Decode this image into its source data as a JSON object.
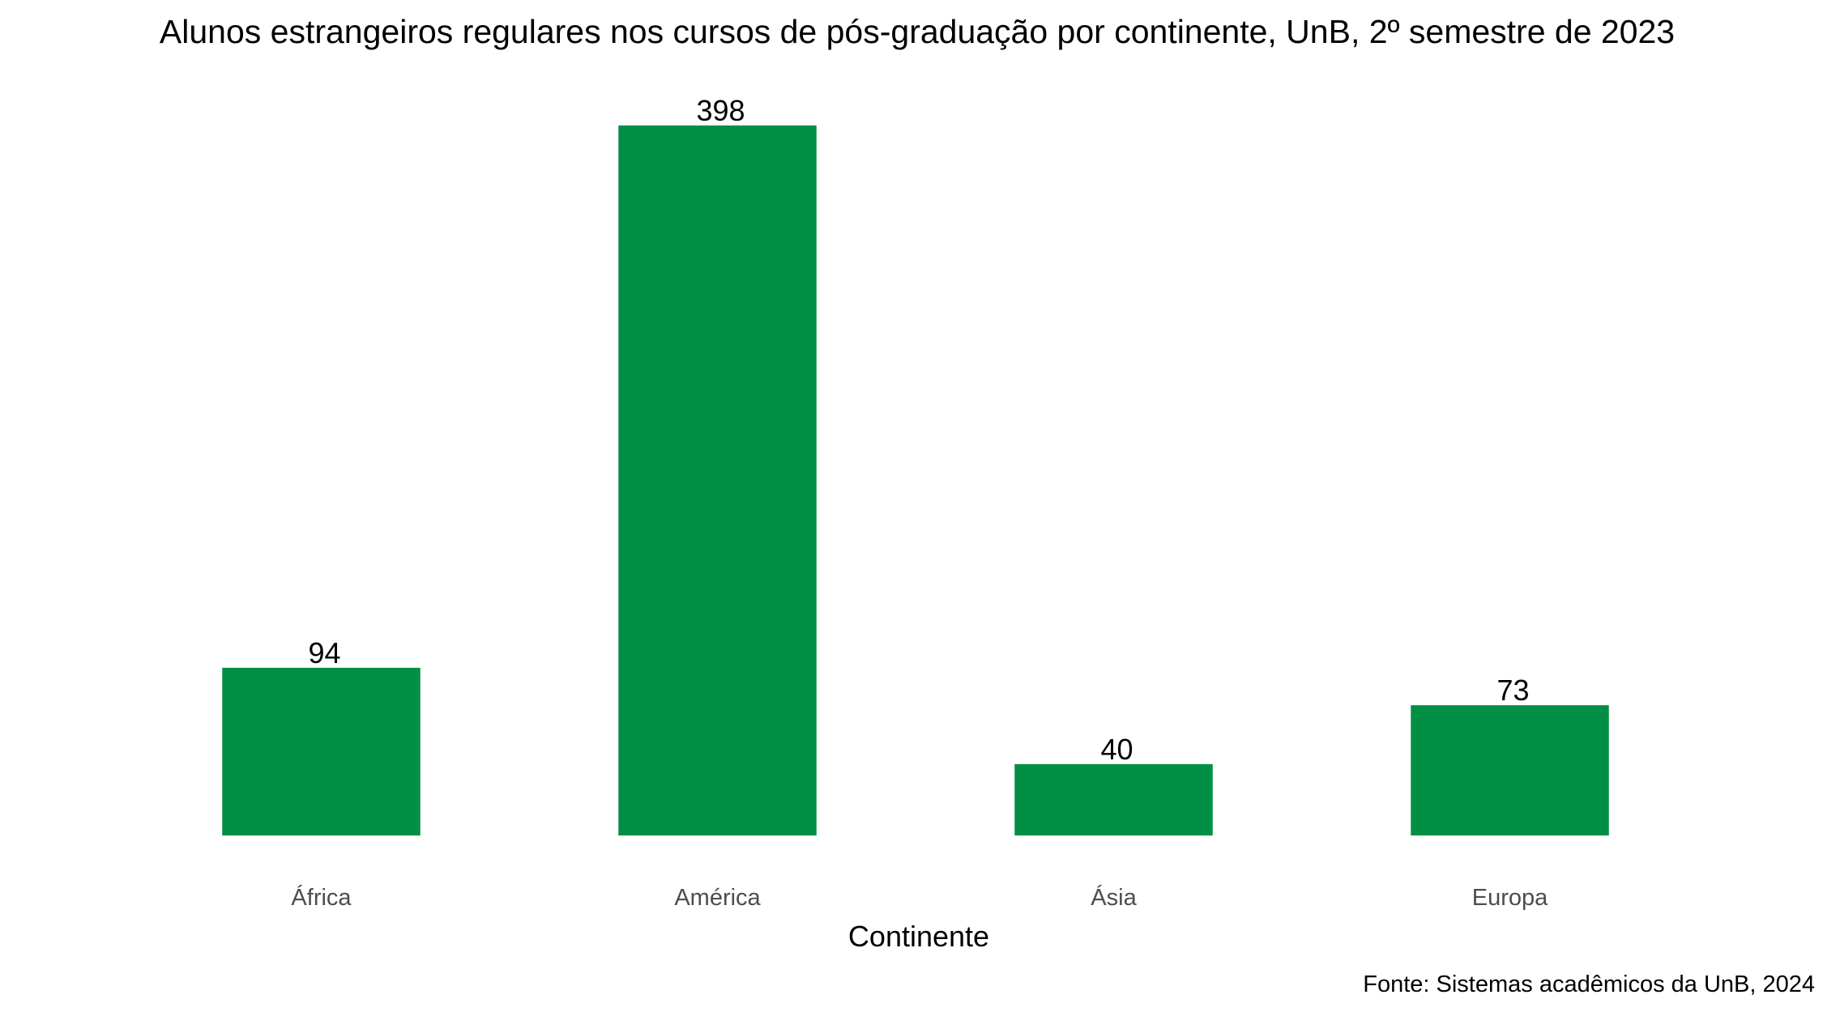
{
  "chart_data": {
    "type": "bar",
    "title": "Alunos estrangeiros regulares nos cursos de pós-graduação por continente, UnB, 2º semestre de 2023",
    "xlabel": "Continente",
    "ylabel": "",
    "categories": [
      "África",
      "América",
      "Ásia",
      "Europa"
    ],
    "values": [
      94,
      398,
      40,
      73
    ],
    "value_labels": [
      "94",
      "398",
      "40",
      "73"
    ],
    "ylim": [
      0,
      398
    ],
    "grid": false,
    "legend": "none",
    "bar_color": "#008F45",
    "caption": "Fonte: Sistemas acadêmicos da UnB, 2024"
  }
}
